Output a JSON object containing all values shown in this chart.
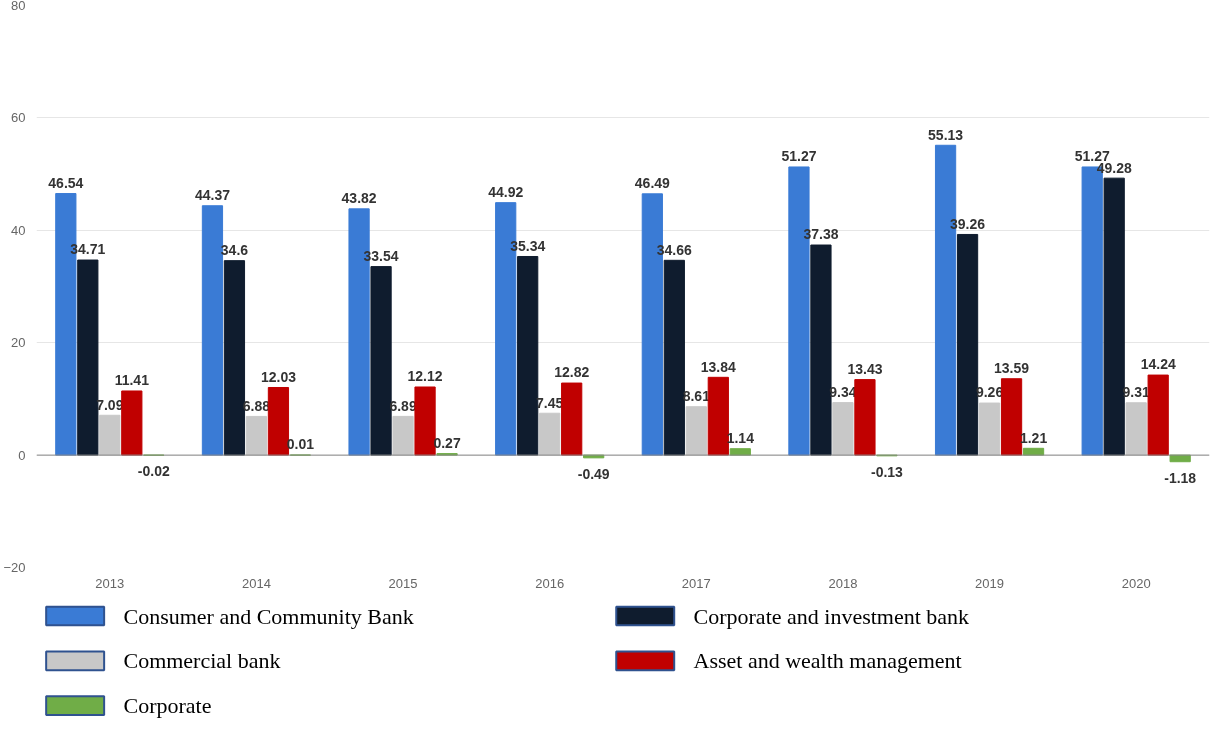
{
  "chart_data": {
    "type": "bar",
    "categories": [
      "2013",
      "2014",
      "2015",
      "2016",
      "2017",
      "2018",
      "2019",
      "2020"
    ],
    "series": [
      {
        "name": "Consumer and Community Bank",
        "color": "#3a7bd5",
        "values": [
          46.54,
          44.37,
          43.82,
          44.92,
          46.49,
          51.27,
          55.13,
          51.27
        ]
      },
      {
        "name": "Corporate and investment bank",
        "color": "#0f1c2e",
        "values": [
          34.71,
          34.6,
          33.54,
          35.34,
          34.66,
          37.38,
          39.26,
          49.28
        ]
      },
      {
        "name": "Commercial bank",
        "color": "#c8c8c8",
        "values": [
          7.09,
          6.88,
          6.89,
          7.45,
          8.61,
          9.34,
          9.26,
          9.31
        ]
      },
      {
        "name": "Asset and wealth management",
        "color": "#c00000",
        "values": [
          11.41,
          12.03,
          12.12,
          12.82,
          13.84,
          13.43,
          13.59,
          14.24
        ]
      },
      {
        "name": "Corporate",
        "color": "#70ad47",
        "values": [
          -0.02,
          0.01,
          0.27,
          -0.49,
          1.14,
          -0.13,
          1.21,
          -1.18
        ]
      }
    ],
    "ylim": [
      -20,
      80
    ],
    "yticks": [
      -20,
      0,
      20,
      40,
      60,
      80
    ],
    "grid": "y",
    "data_labels": true,
    "legend": "bottom"
  }
}
